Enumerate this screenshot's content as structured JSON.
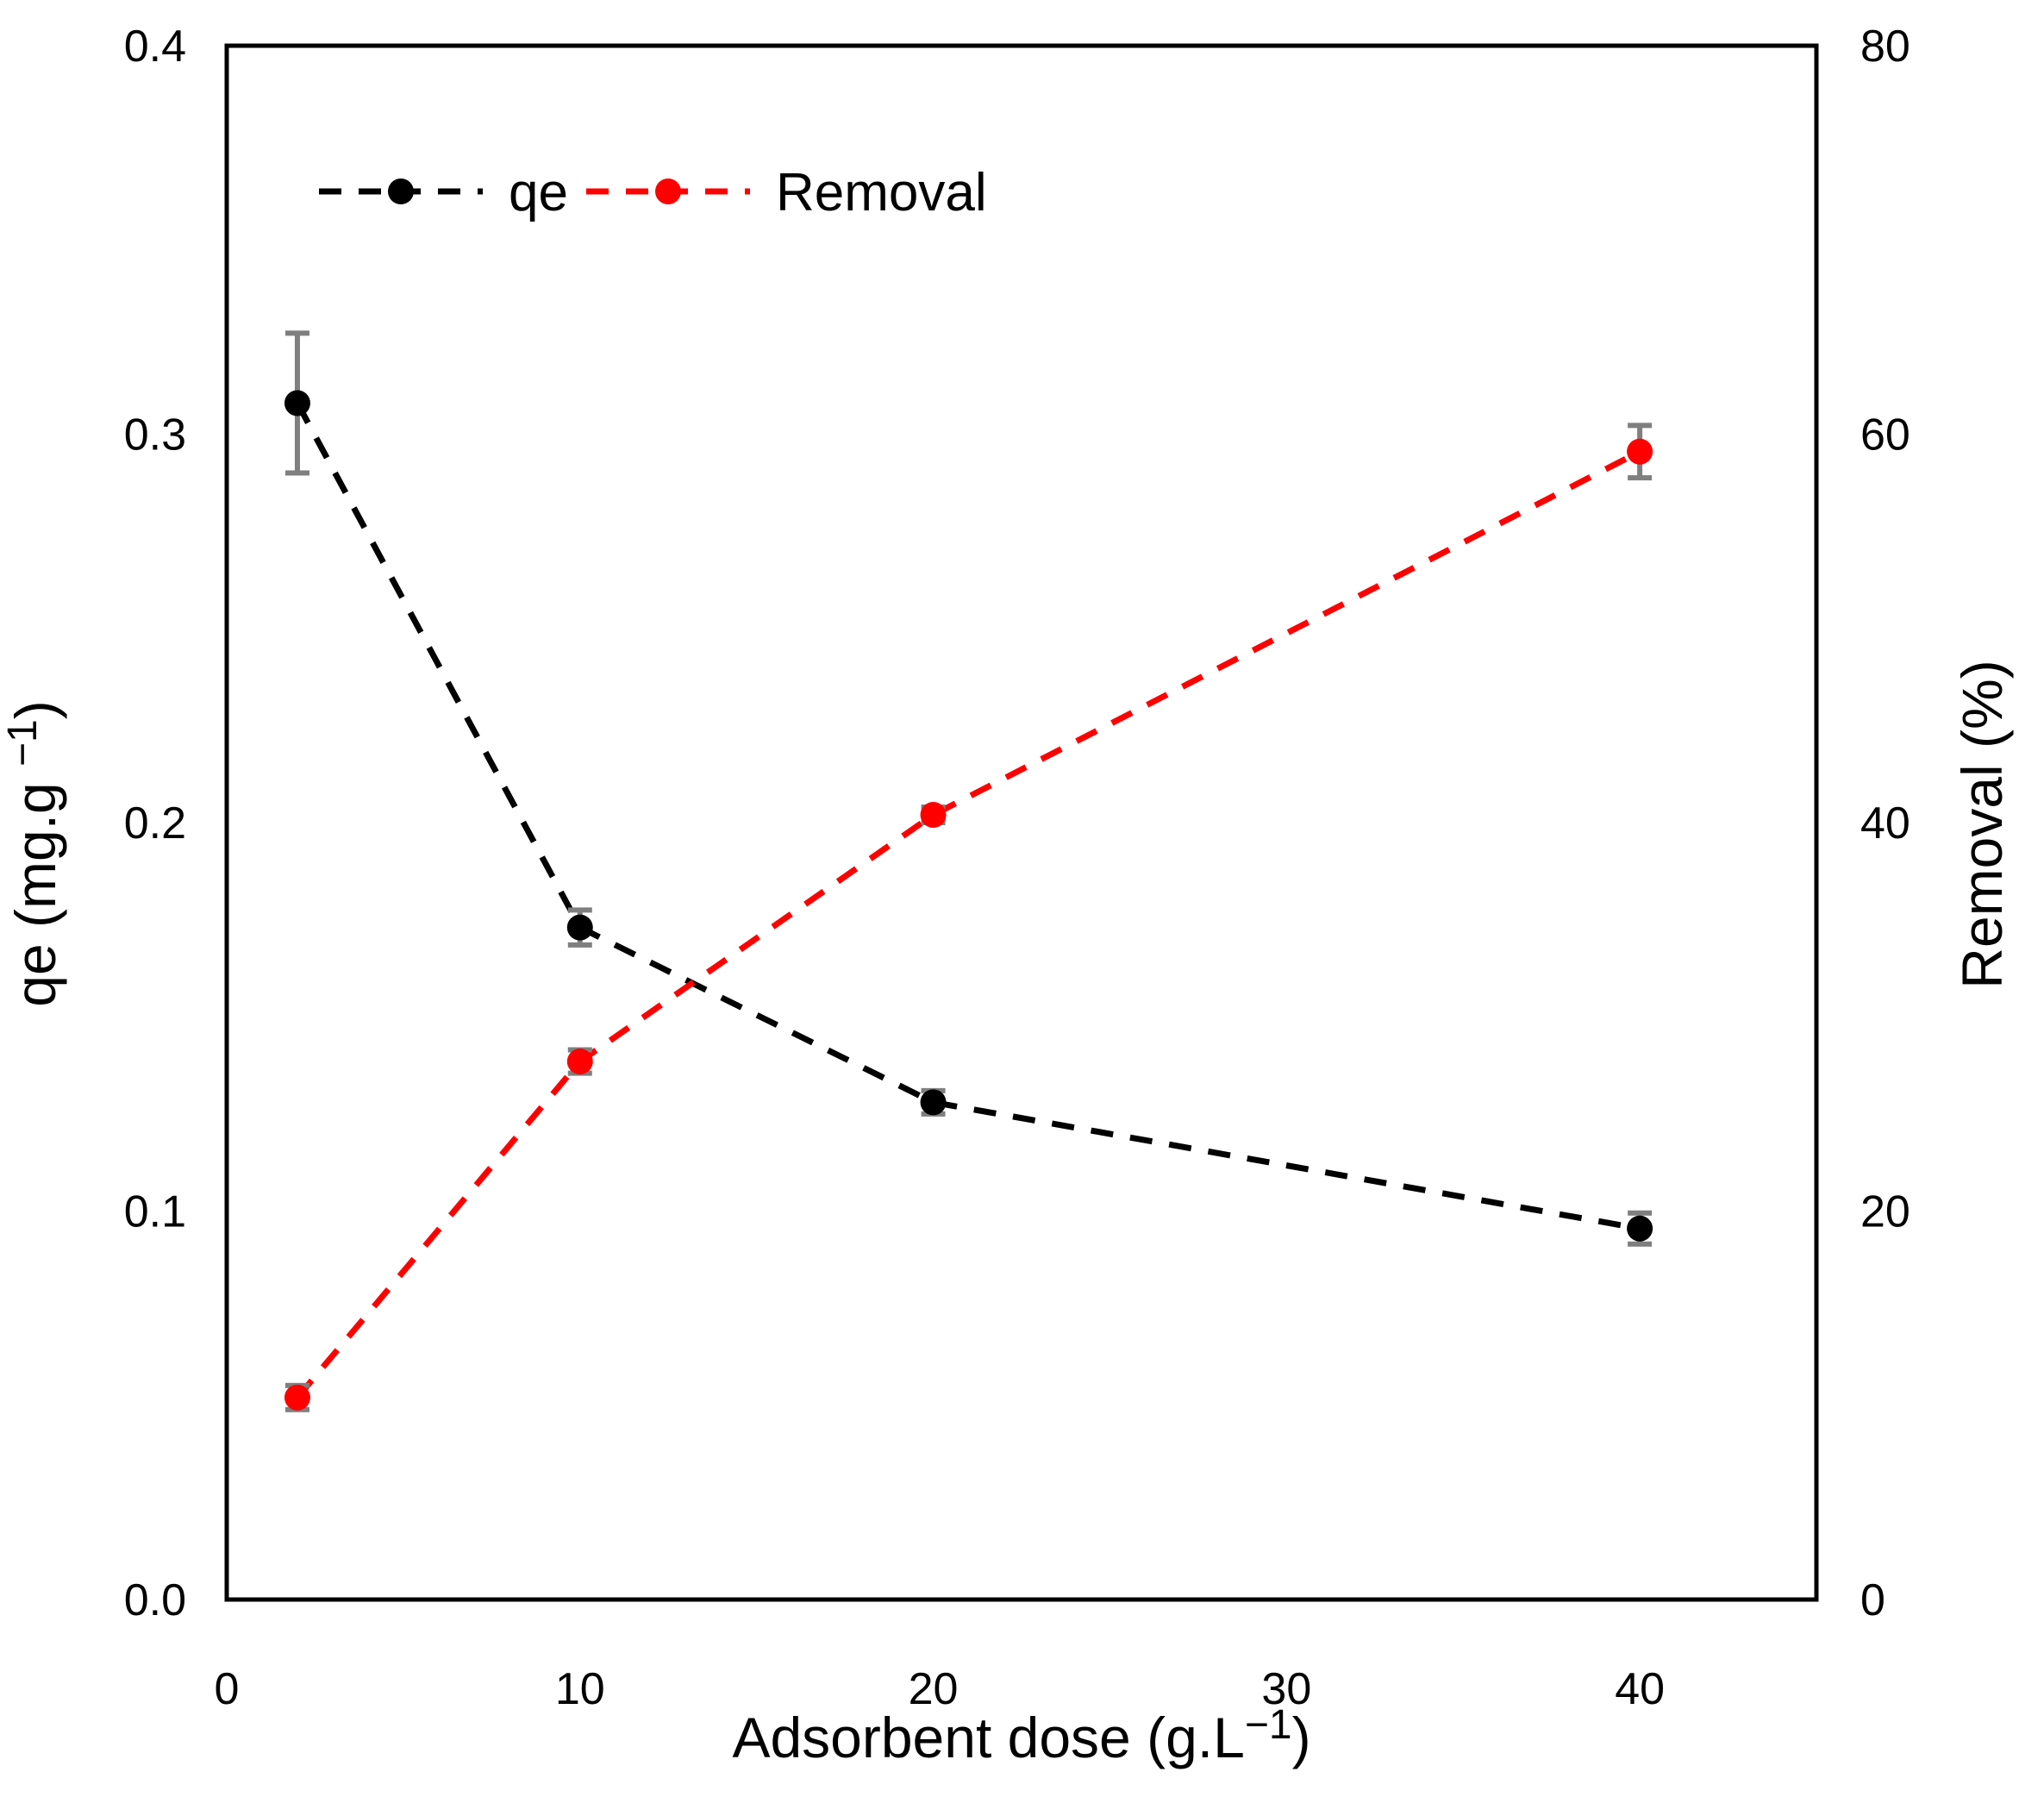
{
  "chart_data": {
    "type": "line",
    "title": "",
    "grid": false,
    "background": "#ffffff",
    "frame_color": "#000000",
    "error_bar_color": "#7f7f7f",
    "x_axis": {
      "label_parts": [
        [
          "Adsorbent dose  (g.L",
          false
        ],
        [
          "−1",
          true
        ],
        [
          ")",
          false
        ]
      ],
      "ticks": [
        "0",
        "10",
        "20",
        "30",
        "40"
      ],
      "tick_values": [
        0,
        10,
        20,
        30,
        40
      ],
      "range": [
        0,
        45
      ]
    },
    "y_left": {
      "label_parts": [
        [
          "qe (mg.g ",
          false
        ],
        [
          "−1",
          true
        ],
        [
          ")",
          false
        ]
      ],
      "ticks": [
        "0.0",
        "0.1",
        "0.2",
        "0.3",
        "0.4"
      ],
      "tick_values": [
        0,
        0.1,
        0.2,
        0.3,
        0.4
      ],
      "range": [
        0,
        0.4
      ]
    },
    "y_right": {
      "label_parts": [
        [
          "Removal (%)",
          false
        ]
      ],
      "ticks": [
        "0",
        "20",
        "40",
        "60",
        "80"
      ],
      "tick_values": [
        0,
        20,
        40,
        60,
        80
      ],
      "range": [
        0,
        80
      ]
    },
    "series": [
      {
        "name": "qe",
        "axis": "left",
        "color": "#000000",
        "line_style": "dashed",
        "marker": "circle",
        "x": [
          2,
          10,
          20,
          40
        ],
        "y": [
          0.308,
          0.173,
          0.128,
          0.0955
        ],
        "yerr": [
          0.018,
          0.0045,
          0.003,
          0.004
        ]
      },
      {
        "name": "Removal",
        "axis": "right",
        "color": "#ff0000",
        "line_style": "dashed",
        "marker": "circle",
        "x": [
          2,
          10,
          20,
          40
        ],
        "y": [
          10.4,
          27.7,
          40.4,
          59.1
        ],
        "yerr": [
          0.62,
          0.6,
          0.4,
          1.35
        ]
      }
    ],
    "legend": {
      "position": "top-left-inside",
      "entries": [
        "qe",
        "Removal"
      ]
    }
  }
}
